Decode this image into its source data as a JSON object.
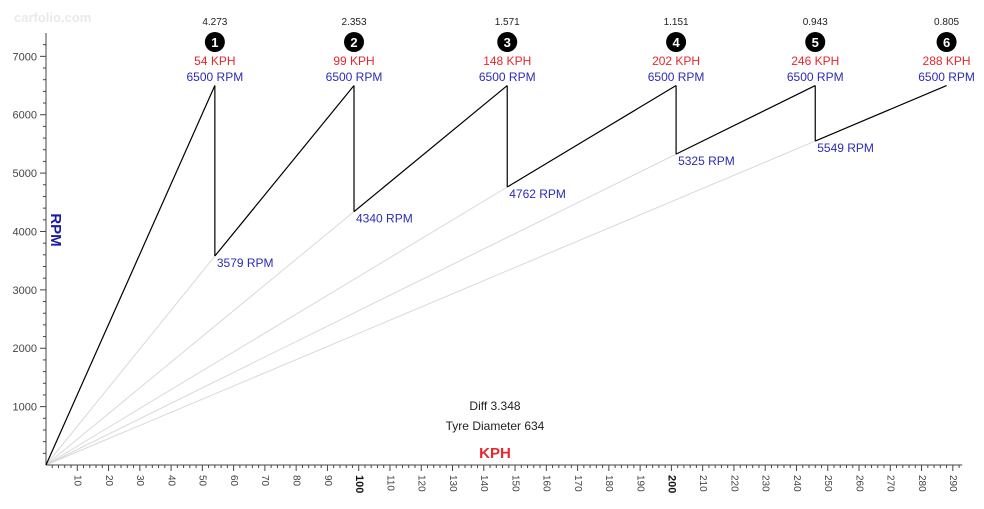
{
  "chart_data": {
    "type": "line",
    "title": "",
    "xlabel": "KPH",
    "ylabel": "RPM",
    "xlim": [
      0,
      293
    ],
    "ylim": [
      0,
      7400
    ],
    "x_ticks": [
      10,
      20,
      30,
      40,
      50,
      60,
      70,
      80,
      90,
      100,
      110,
      120,
      130,
      140,
      150,
      160,
      170,
      180,
      190,
      200,
      210,
      220,
      230,
      240,
      250,
      260,
      270,
      280,
      290
    ],
    "x_major_ticks": [
      100,
      200
    ],
    "y_ticks": [
      1000,
      2000,
      3000,
      4000,
      5000,
      6000,
      7000
    ],
    "gears": [
      {
        "number": "1",
        "ratio": "4.273",
        "speed_label": "54 KPH",
        "rpm_label": "6500 RPM",
        "top_speed": 54,
        "top_rpm": 6500
      },
      {
        "number": "2",
        "ratio": "2.353",
        "speed_label": "99 KPH",
        "rpm_label": "6500 RPM",
        "top_speed": 98.5,
        "top_rpm": 6500,
        "drop_rpm": 3579,
        "drop_label": "3579 RPM"
      },
      {
        "number": "3",
        "ratio": "1.571",
        "speed_label": "148 KPH",
        "rpm_label": "6500 RPM",
        "top_speed": 147.5,
        "top_rpm": 6500,
        "drop_rpm": 4340,
        "drop_label": "4340 RPM"
      },
      {
        "number": "4",
        "ratio": "1.151",
        "speed_label": "202 KPH",
        "rpm_label": "6500 RPM",
        "top_speed": 201.5,
        "top_rpm": 6500,
        "drop_rpm": 4762,
        "drop_label": "4762 RPM"
      },
      {
        "number": "5",
        "ratio": "0.943",
        "speed_label": "246 KPH",
        "rpm_label": "6500 RPM",
        "top_speed": 246,
        "top_rpm": 6500,
        "drop_rpm": 5325,
        "drop_label": "5325 RPM"
      },
      {
        "number": "6",
        "ratio": "0.805",
        "speed_label": "288 KPH",
        "rpm_label": "6500 RPM",
        "top_speed": 288,
        "top_rpm": 6500,
        "drop_rpm": 5549,
        "drop_label": "5549 RPM"
      }
    ],
    "info": {
      "diff": "Diff 3.348",
      "tyre": "Tyre Diameter 634"
    },
    "colors": {
      "line": "#000000",
      "guide": "#d9d9d9",
      "speed": "#e8262b",
      "rpm": "#2b2bb8",
      "axis": "#444444",
      "xlabel": "#e8262b",
      "ylabel": "#1a1aa8",
      "badge": "#000000"
    }
  },
  "watermark": "carfolio.com"
}
